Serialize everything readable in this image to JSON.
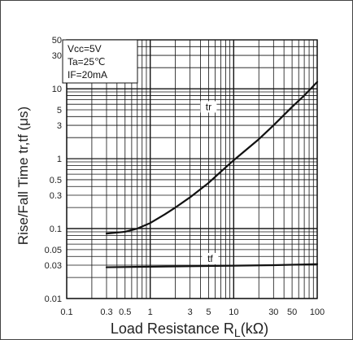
{
  "chart_data": {
    "type": "line",
    "xscale": "log",
    "yscale": "log",
    "xlim": [
      0.1,
      100
    ],
    "ylim": [
      0.01,
      50
    ],
    "grid": true,
    "ylabel": "Rise/Fall Time  tr,tf   (μs)",
    "xlabel": "Load Resistance   R",
    "xlabel_sub": "L",
    "xlabel_unit": "(kΩ)",
    "conditions": [
      "Vcc=5V",
      "Ta=25℃",
      "IF=20mA"
    ],
    "xticks": [
      {
        "value": 0.1,
        "label": "0.1"
      },
      {
        "value": 0.3,
        "label": "0.3"
      },
      {
        "value": 0.5,
        "label": "0.5"
      },
      {
        "value": 1,
        "label": "1"
      },
      {
        "value": 3,
        "label": "3"
      },
      {
        "value": 5,
        "label": "5"
      },
      {
        "value": 10,
        "label": "10"
      },
      {
        "value": 30,
        "label": "30"
      },
      {
        "value": 50,
        "label": "50"
      },
      {
        "value": 100,
        "label": "100"
      }
    ],
    "yticks": [
      {
        "value": 0.01,
        "label": "0.01"
      },
      {
        "value": 0.03,
        "label": "0.03"
      },
      {
        "value": 0.05,
        "label": "0.05"
      },
      {
        "value": 0.1,
        "label": "0.1"
      },
      {
        "value": 0.3,
        "label": "0.3"
      },
      {
        "value": 0.5,
        "label": "0.5"
      },
      {
        "value": 1,
        "label": "1"
      },
      {
        "value": 3,
        "label": "3"
      },
      {
        "value": 5,
        "label": "5"
      },
      {
        "value": 10,
        "label": "10"
      },
      {
        "value": 30,
        "label": "30"
      },
      {
        "value": 50,
        "label": "50"
      }
    ],
    "series": [
      {
        "name": "tr",
        "x": [
          0.3,
          0.5,
          0.7,
          1,
          1.5,
          2,
          3,
          5,
          7,
          10,
          20,
          30,
          50,
          70,
          100
        ],
        "y": [
          0.085,
          0.09,
          0.1,
          0.12,
          0.16,
          0.2,
          0.28,
          0.45,
          0.65,
          0.95,
          1.9,
          3.0,
          5.5,
          8.0,
          12.5
        ]
      },
      {
        "name": "tf",
        "x": [
          0.3,
          1,
          3,
          10,
          30,
          100
        ],
        "y": [
          0.028,
          0.0285,
          0.029,
          0.0295,
          0.03,
          0.031
        ]
      }
    ]
  }
}
